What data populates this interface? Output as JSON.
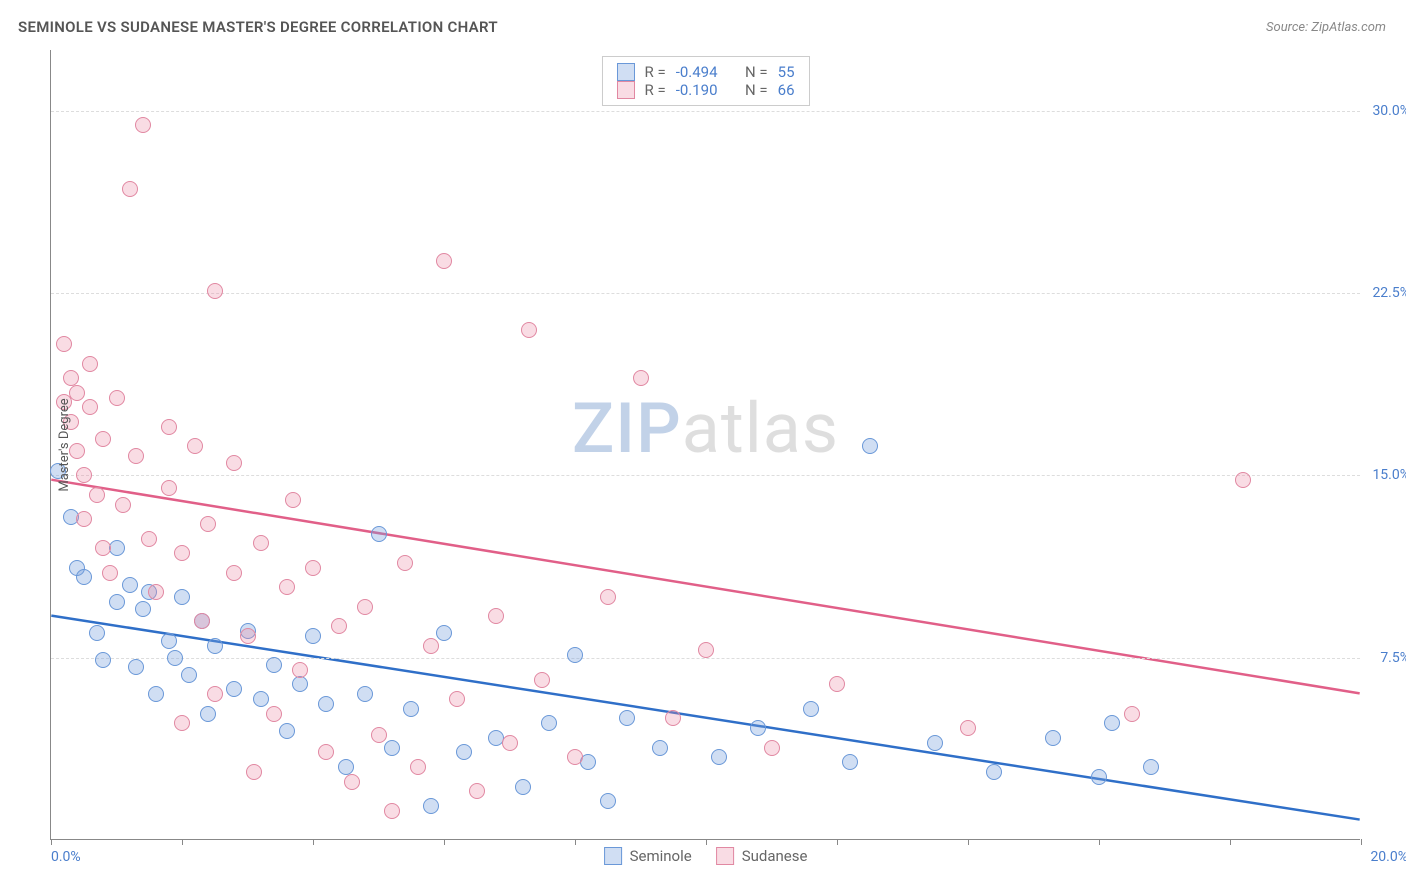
{
  "title": "SEMINOLE VS SUDANESE MASTER'S DEGREE CORRELATION CHART",
  "source": "Source: ZipAtlas.com",
  "y_axis_title": "Master's Degree",
  "watermark": {
    "part1": "ZIP",
    "part2": "atlas"
  },
  "chart": {
    "type": "scatter",
    "xlim": [
      0,
      20
    ],
    "ylim": [
      0,
      32.5
    ],
    "x_tick_step": 2,
    "y_grid_values": [
      7.5,
      15.0,
      22.5,
      30.0
    ],
    "y_grid_labels": [
      "7.5%",
      "15.0%",
      "22.5%",
      "30.0%"
    ],
    "x_start_label": "0.0%",
    "x_end_label": "20.0%",
    "background_color": "#ffffff",
    "grid_color": "#dddddd",
    "axis_color": "#888888",
    "tick_label_color": "#4a7ecc",
    "point_radius": 8,
    "series": [
      {
        "name": "Seminole",
        "fill_color": "rgba(120,160,220,0.35)",
        "stroke_color": "#6a98d8",
        "trend_color": "#2f6fc8",
        "trend_width": 2.5,
        "trend": {
          "x1": 0,
          "y1": 9.2,
          "x2": 20,
          "y2": 0.8
        },
        "R_label": "R = ",
        "R_value": "-0.494",
        "N_label": "N = ",
        "N_value": "55",
        "points": [
          [
            0.1,
            15.2
          ],
          [
            0.3,
            13.3
          ],
          [
            0.4,
            11.2
          ],
          [
            0.5,
            10.8
          ],
          [
            0.7,
            8.5
          ],
          [
            0.8,
            7.4
          ],
          [
            1.0,
            12.0
          ],
          [
            1.0,
            9.8
          ],
          [
            1.2,
            10.5
          ],
          [
            1.3,
            7.1
          ],
          [
            1.4,
            9.5
          ],
          [
            1.5,
            10.2
          ],
          [
            1.6,
            6.0
          ],
          [
            1.8,
            8.2
          ],
          [
            1.9,
            7.5
          ],
          [
            2.0,
            10.0
          ],
          [
            2.1,
            6.8
          ],
          [
            2.3,
            9.0
          ],
          [
            2.4,
            5.2
          ],
          [
            2.5,
            8.0
          ],
          [
            2.8,
            6.2
          ],
          [
            3.0,
            8.6
          ],
          [
            3.2,
            5.8
          ],
          [
            3.4,
            7.2
          ],
          [
            3.6,
            4.5
          ],
          [
            3.8,
            6.4
          ],
          [
            4.0,
            8.4
          ],
          [
            4.2,
            5.6
          ],
          [
            4.5,
            3.0
          ],
          [
            4.8,
            6.0
          ],
          [
            5.0,
            12.6
          ],
          [
            5.2,
            3.8
          ],
          [
            5.5,
            5.4
          ],
          [
            5.8,
            1.4
          ],
          [
            6.0,
            8.5
          ],
          [
            6.3,
            3.6
          ],
          [
            6.8,
            4.2
          ],
          [
            7.2,
            2.2
          ],
          [
            7.6,
            4.8
          ],
          [
            8.0,
            7.6
          ],
          [
            8.2,
            3.2
          ],
          [
            8.5,
            1.6
          ],
          [
            8.8,
            5.0
          ],
          [
            9.3,
            3.8
          ],
          [
            10.2,
            3.4
          ],
          [
            10.8,
            4.6
          ],
          [
            11.6,
            5.4
          ],
          [
            12.2,
            3.2
          ],
          [
            12.5,
            16.2
          ],
          [
            13.5,
            4.0
          ],
          [
            14.4,
            2.8
          ],
          [
            15.3,
            4.2
          ],
          [
            16.0,
            2.6
          ],
          [
            16.2,
            4.8
          ],
          [
            16.8,
            3.0
          ]
        ]
      },
      {
        "name": "Sudanese",
        "fill_color": "rgba(235,140,165,0.30)",
        "stroke_color": "#e188a2",
        "trend_color": "#e15f88",
        "trend_width": 2.5,
        "trend": {
          "x1": 0,
          "y1": 14.8,
          "x2": 20,
          "y2": 6.0
        },
        "R_label": "R = ",
        "R_value": "-0.190",
        "N_label": "N = ",
        "N_value": "66",
        "points": [
          [
            0.2,
            18.0
          ],
          [
            0.2,
            20.4
          ],
          [
            0.3,
            17.2
          ],
          [
            0.3,
            19.0
          ],
          [
            0.4,
            16.0
          ],
          [
            0.4,
            18.4
          ],
          [
            0.5,
            15.0
          ],
          [
            0.5,
            13.2
          ],
          [
            0.6,
            19.6
          ],
          [
            0.6,
            17.8
          ],
          [
            0.7,
            14.2
          ],
          [
            0.8,
            16.5
          ],
          [
            0.8,
            12.0
          ],
          [
            0.9,
            11.0
          ],
          [
            1.0,
            18.2
          ],
          [
            1.1,
            13.8
          ],
          [
            1.2,
            26.8
          ],
          [
            1.3,
            15.8
          ],
          [
            1.4,
            29.4
          ],
          [
            1.5,
            12.4
          ],
          [
            1.6,
            10.2
          ],
          [
            1.8,
            14.5
          ],
          [
            1.8,
            17.0
          ],
          [
            2.0,
            11.8
          ],
          [
            2.0,
            4.8
          ],
          [
            2.2,
            16.2
          ],
          [
            2.3,
            9.0
          ],
          [
            2.4,
            13.0
          ],
          [
            2.5,
            6.0
          ],
          [
            2.5,
            22.6
          ],
          [
            2.8,
            11.0
          ],
          [
            2.8,
            15.5
          ],
          [
            3.0,
            8.4
          ],
          [
            3.1,
            2.8
          ],
          [
            3.2,
            12.2
          ],
          [
            3.4,
            5.2
          ],
          [
            3.6,
            10.4
          ],
          [
            3.7,
            14.0
          ],
          [
            3.8,
            7.0
          ],
          [
            4.0,
            11.2
          ],
          [
            4.2,
            3.6
          ],
          [
            4.4,
            8.8
          ],
          [
            4.6,
            2.4
          ],
          [
            4.8,
            9.6
          ],
          [
            5.0,
            4.3
          ],
          [
            5.2,
            1.2
          ],
          [
            5.4,
            11.4
          ],
          [
            5.6,
            3.0
          ],
          [
            5.8,
            8.0
          ],
          [
            6.0,
            23.8
          ],
          [
            6.2,
            5.8
          ],
          [
            6.5,
            2.0
          ],
          [
            6.8,
            9.2
          ],
          [
            7.0,
            4.0
          ],
          [
            7.3,
            21.0
          ],
          [
            7.5,
            6.6
          ],
          [
            8.0,
            3.4
          ],
          [
            8.5,
            10.0
          ],
          [
            9.0,
            19.0
          ],
          [
            9.5,
            5.0
          ],
          [
            10.0,
            7.8
          ],
          [
            11.0,
            3.8
          ],
          [
            12.0,
            6.4
          ],
          [
            14.0,
            4.6
          ],
          [
            16.5,
            5.2
          ],
          [
            18.2,
            14.8
          ]
        ]
      }
    ]
  },
  "legend_bottom": [
    {
      "label": "Seminole"
    },
    {
      "label": "Sudanese"
    }
  ]
}
